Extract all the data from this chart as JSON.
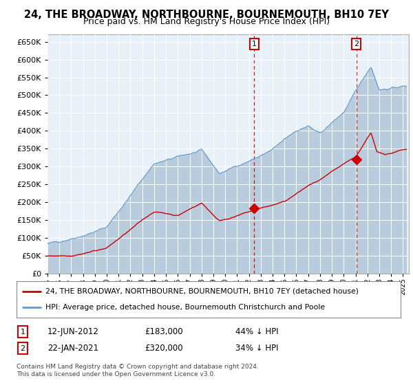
{
  "title": "24, THE BROADWAY, NORTHBOURNE, BOURNEMOUTH, BH10 7EY",
  "subtitle": "Price paid vs. HM Land Registry's House Price Index (HPI)",
  "legend_red": "24, THE BROADWAY, NORTHBOURNE, BOURNEMOUTH, BH10 7EY (detached house)",
  "legend_blue": "HPI: Average price, detached house, Bournemouth Christchurch and Poole",
  "annotation1_date": "12-JUN-2012",
  "annotation1_price": "£183,000",
  "annotation1_pct": "44% ↓ HPI",
  "annotation2_date": "22-JAN-2021",
  "annotation2_price": "£320,000",
  "annotation2_pct": "34% ↓ HPI",
  "sale1_year": 2012.45,
  "sale1_value_red": 183000,
  "sale2_year": 2021.06,
  "sale2_value_red": 320000,
  "footer": "Contains HM Land Registry data © Crown copyright and database right 2024.\nThis data is licensed under the Open Government Licence v3.0.",
  "plot_bg": "#e8f0f8",
  "grid_color": "#c8d4e0",
  "red_color": "#cc0000",
  "blue_color": "#6699cc",
  "blue_fill": "#b8ccdd",
  "ylim": [
    0,
    670000
  ],
  "yticks": [
    0,
    50000,
    100000,
    150000,
    200000,
    250000,
    300000,
    350000,
    400000,
    450000,
    500000,
    550000,
    600000,
    650000
  ],
  "xlim_start": 1995,
  "xlim_end": 2025.5
}
